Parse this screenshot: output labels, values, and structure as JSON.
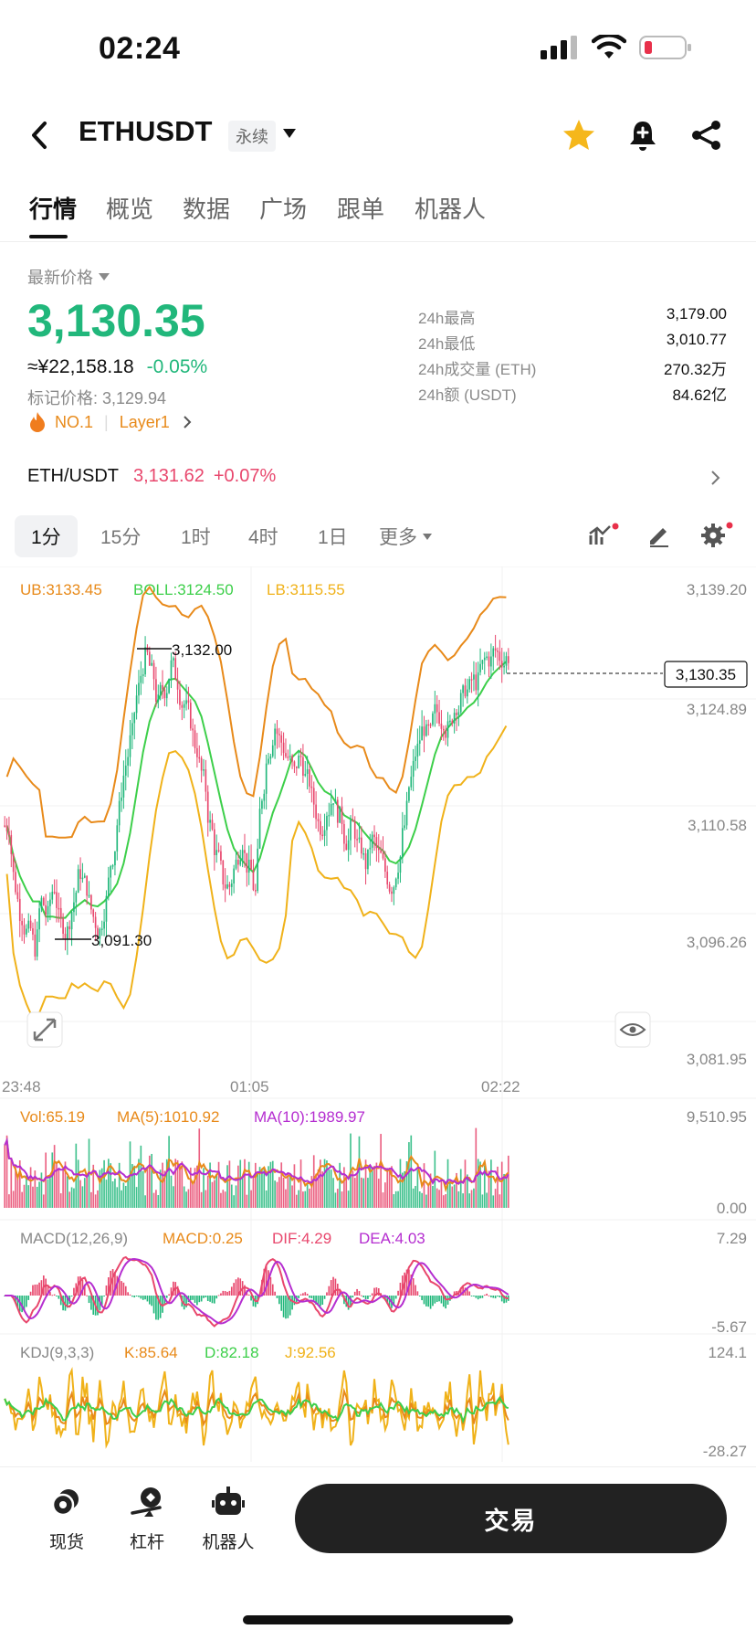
{
  "status": {
    "time": "02:24"
  },
  "header": {
    "pair": "ETHUSDT",
    "tag": "永续"
  },
  "tabs": [
    "行情",
    "概览",
    "数据",
    "广场",
    "跟单",
    "机器人"
  ],
  "price": {
    "label": "最新价格",
    "last": "3,130.35",
    "cny": "≈¥22,158.18",
    "change": "-0.05%",
    "mark": "标记价格: 3,129.94",
    "rank": "NO.1",
    "category": "Layer1",
    "stats": [
      {
        "k": "24h最高",
        "v": "3,179.00"
      },
      {
        "k": "24h最低",
        "v": "3,010.77"
      },
      {
        "k": "24h成交量 (ETH)",
        "v": "270.32万"
      },
      {
        "k": "24h额 (USDT)",
        "v": "84.62亿"
      }
    ]
  },
  "ref": {
    "pair": "ETH/USDT",
    "price": "3,131.62",
    "change": "+0.07%"
  },
  "intervals": [
    "1分",
    "15分",
    "1时",
    "4时",
    "1日",
    "更多"
  ],
  "chart_data": {
    "type": "candlestick",
    "main": {
      "boll": {
        "ub_label": "UB:3133.45",
        "boll_label": "BOLL:3124.50",
        "lb_label": "LB:3115.55"
      },
      "y_ticks": [
        "3,139.20",
        "3,124.89",
        "3,110.58",
        "3,096.26",
        "3,081.95"
      ],
      "ylim": [
        3081.95,
        3139.2
      ],
      "x_ticks": [
        "23:48",
        "01:05",
        "02:22"
      ],
      "high_marker": "3,132.00",
      "low_marker": "3,091.30",
      "current_price_tag": "3,130.35",
      "closes": [
        3108,
        3100,
        3096,
        3094,
        3092,
        3098,
        3096,
        3100,
        3095,
        3094,
        3098,
        3102,
        3100,
        3096,
        3094,
        3098,
        3104,
        3110,
        3116,
        3120,
        3126,
        3130,
        3128,
        3124,
        3126,
        3129,
        3127,
        3124,
        3122,
        3118,
        3114,
        3108,
        3104,
        3101,
        3100,
        3103,
        3106,
        3102,
        3099,
        3112,
        3118,
        3121,
        3119,
        3117,
        3115,
        3117,
        3114,
        3111,
        3108,
        3110,
        3112,
        3109,
        3106,
        3108,
        3105,
        3103,
        3106,
        3104,
        3102,
        3100,
        3103,
        3108,
        3114,
        3118,
        3121,
        3120,
        3123,
        3122,
        3121,
        3124,
        3125,
        3126,
        3127,
        3129,
        3130,
        3131,
        3130,
        3130.35
      ]
    },
    "volume": {
      "vol_label": "Vol:65.19",
      "ma5_label": "MA(5):1010.92",
      "ma10_label": "MA(10):1989.97",
      "y_ticks": [
        "9,510.95",
        "0.00"
      ]
    },
    "macd": {
      "label": "MACD(12,26,9)",
      "macd_label": "MACD:0.25",
      "dif_label": "DIF:4.29",
      "dea_label": "DEA:4.03",
      "y_ticks": [
        "7.29",
        "-5.67"
      ]
    },
    "kdj": {
      "label": "KDJ(9,3,3)",
      "k_label": "K:85.64",
      "d_label": "D:82.18",
      "j_label": "J:92.56",
      "y_ticks": [
        "124.1",
        "-28.27"
      ]
    }
  },
  "bottom": {
    "spot": "现货",
    "leverage": "杠杆",
    "robot": "机器人",
    "trade": "交易"
  },
  "colors": {
    "up": "#21b77b",
    "down": "#e8476d",
    "boll_ub": "#e88a1a",
    "boll_mid": "#3dcf4a",
    "boll_lb": "#f0b21a",
    "purple": "#b52ed0"
  }
}
